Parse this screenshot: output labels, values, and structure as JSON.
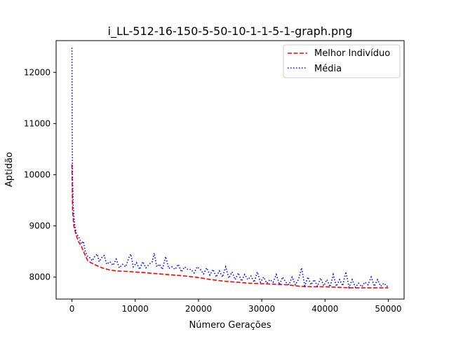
{
  "chart_data": {
    "type": "line",
    "title": "i_LL-512-16-150-5-50-10-1-1-5-1-graph.png",
    "xlabel": "Número Gerações",
    "ylabel": "Aptidão",
    "xlim": [
      -2500,
      52500
    ],
    "ylim": [
      7570,
      12620
    ],
    "xticks": [
      0,
      10000,
      20000,
      30000,
      40000,
      50000
    ],
    "xtick_labels": [
      "0",
      "10000",
      "20000",
      "30000",
      "40000",
      "50000"
    ],
    "yticks": [
      8000,
      9000,
      10000,
      11000,
      12000
    ],
    "ytick_labels": [
      "8000",
      "9000",
      "10000",
      "11000",
      "12000"
    ],
    "grid": false,
    "legend_position": "top-right",
    "series": [
      {
        "name": "Melhor Indivíduo",
        "color": "#ff0000",
        "style": "dashed",
        "x": [
          0,
          100,
          300,
          600,
          1000,
          1500,
          2000,
          2500,
          3000,
          4000,
          5000,
          6000,
          7000,
          8000,
          10000,
          12000,
          14000,
          16000,
          18000,
          20000,
          22000,
          24000,
          26000,
          28000,
          30000,
          32000,
          34000,
          36000,
          38000,
          40000,
          42000,
          44000,
          46000,
          48000,
          50000
        ],
        "y": [
          10200,
          9300,
          9000,
          8850,
          8700,
          8600,
          8450,
          8320,
          8280,
          8220,
          8170,
          8140,
          8120,
          8115,
          8100,
          8080,
          8060,
          8040,
          8020,
          7990,
          7950,
          7920,
          7900,
          7880,
          7870,
          7860,
          7850,
          7820,
          7810,
          7810,
          7800,
          7790,
          7790,
          7790,
          7790
        ]
      },
      {
        "name": "Média",
        "color": "#0000ff",
        "style": "dotted",
        "x": [
          0,
          50,
          100,
          200,
          400,
          700,
          1000,
          1200,
          1500,
          1800,
          2100,
          2500,
          2800,
          3200,
          3600,
          4000,
          4300,
          4700,
          5100,
          5500,
          6000,
          6500,
          7000,
          7500,
          8000,
          8500,
          9000,
          9300,
          9700,
          10200,
          10700,
          11200,
          11700,
          12200,
          12700,
          13000,
          13400,
          13800,
          14300,
          14800,
          15300,
          15800,
          16300,
          16800,
          17300,
          17800,
          18300,
          18800,
          19300,
          19800,
          20300,
          20800,
          21300,
          21800,
          22300,
          22800,
          23300,
          23800,
          24300,
          24800,
          25300,
          25800,
          26300,
          26800,
          27300,
          27800,
          28300,
          28800,
          29300,
          29800,
          30300,
          30800,
          31300,
          31800,
          32300,
          32800,
          33300,
          33800,
          34300,
          34800,
          35300,
          35800,
          36300,
          36800,
          37300,
          37800,
          38300,
          38800,
          39300,
          39800,
          40300,
          40800,
          41300,
          41800,
          42300,
          42800,
          43300,
          43800,
          44300,
          44800,
          45300,
          45800,
          46300,
          46800,
          47300,
          47800,
          48300,
          48800,
          49300,
          49800,
          50000
        ],
        "y": [
          12480,
          10600,
          9900,
          9400,
          9050,
          8850,
          8800,
          8750,
          8650,
          8700,
          8500,
          8400,
          8380,
          8320,
          8400,
          8450,
          8300,
          8380,
          8420,
          8250,
          8300,
          8230,
          8350,
          8180,
          8250,
          8200,
          8380,
          8450,
          8200,
          8280,
          8150,
          8300,
          8180,
          8250,
          8300,
          8470,
          8200,
          8250,
          8150,
          8400,
          8170,
          8200,
          8150,
          8250,
          8100,
          8200,
          8150,
          8150,
          8080,
          8200,
          8150,
          8060,
          8180,
          8040,
          8150,
          8000,
          8120,
          8000,
          8200,
          7980,
          8100,
          7950,
          8080,
          7920,
          8050,
          7950,
          8020,
          7900,
          8100,
          7900,
          8000,
          7880,
          7950,
          7900,
          8050,
          7850,
          8000,
          7900,
          7850,
          8000,
          7850,
          7950,
          8180,
          7830,
          8000,
          7850,
          7950,
          7820,
          7980,
          7830,
          7950,
          7810,
          8050,
          7820,
          7950,
          7830,
          8100,
          7800,
          7950,
          7800,
          7880,
          7810,
          7900,
          7850,
          8000,
          7820,
          7950,
          7820,
          7880,
          7820,
          7850
        ]
      }
    ]
  }
}
